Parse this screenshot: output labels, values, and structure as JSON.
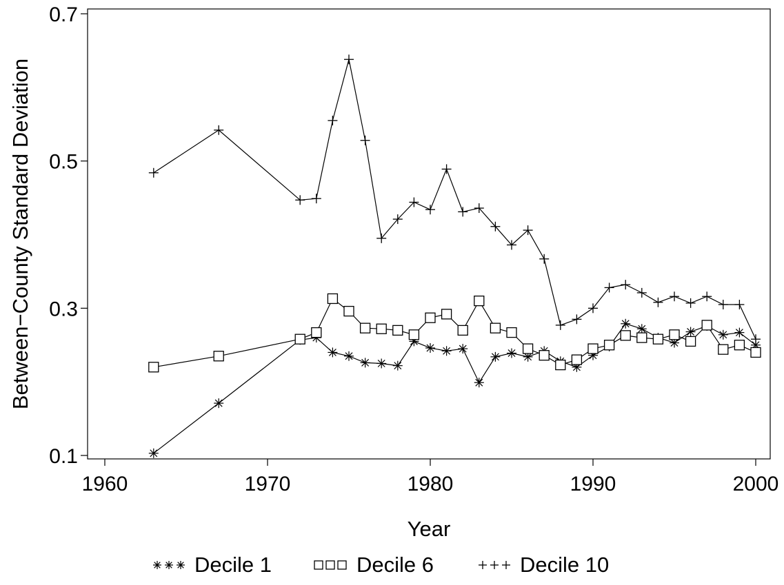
{
  "chart_data": {
    "type": "line",
    "title": "",
    "xlabel": "Year",
    "ylabel": "Between−County Standard Deviation",
    "xlim": [
      1960,
      2000
    ],
    "ylim": [
      0.1,
      0.7
    ],
    "xticks": [
      1960,
      1970,
      1980,
      1990,
      2000
    ],
    "yticks": [
      0.1,
      0.3,
      0.5,
      0.7
    ],
    "ytick_labels": [
      "0.1",
      "0.3",
      "0.5",
      "0.7"
    ],
    "grid": false,
    "legend": "bottom",
    "series": [
      {
        "name": "Decile 1",
        "marker": "star",
        "x": [
          1963,
          1967,
          1972,
          1973,
          1974,
          1975,
          1976,
          1977,
          1978,
          1979,
          1980,
          1981,
          1982,
          1983,
          1984,
          1985,
          1986,
          1987,
          1988,
          1989,
          1990,
          1991,
          1992,
          1993,
          1994,
          1995,
          1996,
          1997,
          1998,
          1999,
          2000
        ],
        "y": [
          0.103,
          0.171,
          0.257,
          0.26,
          0.24,
          0.235,
          0.226,
          0.225,
          0.222,
          0.255,
          0.246,
          0.242,
          0.245,
          0.199,
          0.234,
          0.239,
          0.234,
          0.242,
          0.228,
          0.22,
          0.236,
          0.248,
          0.279,
          0.272,
          0.26,
          0.253,
          0.268,
          0.276,
          0.264,
          0.267,
          0.25
        ]
      },
      {
        "name": "Decile 6",
        "marker": "square",
        "x": [
          1963,
          1967,
          1972,
          1973,
          1974,
          1975,
          1976,
          1977,
          1978,
          1979,
          1980,
          1981,
          1982,
          1983,
          1984,
          1985,
          1986,
          1987,
          1988,
          1989,
          1990,
          1991,
          1992,
          1993,
          1994,
          1995,
          1996,
          1997,
          1998,
          1999,
          2000
        ],
        "y": [
          0.22,
          0.235,
          0.258,
          0.267,
          0.313,
          0.296,
          0.273,
          0.272,
          0.27,
          0.264,
          0.287,
          0.292,
          0.27,
          0.31,
          0.273,
          0.267,
          0.245,
          0.236,
          0.223,
          0.23,
          0.245,
          0.25,
          0.263,
          0.26,
          0.258,
          0.264,
          0.255,
          0.277,
          0.244,
          0.25,
          0.24
        ]
      },
      {
        "name": "Decile 10",
        "marker": "plus",
        "x": [
          1963,
          1967,
          1972,
          1973,
          1974,
          1975,
          1976,
          1977,
          1978,
          1979,
          1980,
          1981,
          1982,
          1983,
          1984,
          1985,
          1986,
          1987,
          1988,
          1989,
          1990,
          1991,
          1992,
          1993,
          1994,
          1995,
          1996,
          1997,
          1998,
          1999,
          2000
        ],
        "y": [
          0.484,
          0.542,
          0.447,
          0.449,
          0.555,
          0.638,
          0.528,
          0.395,
          0.421,
          0.444,
          0.434,
          0.489,
          0.431,
          0.436,
          0.411,
          0.386,
          0.406,
          0.367,
          0.277,
          0.285,
          0.3,
          0.328,
          0.332,
          0.321,
          0.308,
          0.316,
          0.307,
          0.316,
          0.305,
          0.305,
          0.258
        ]
      }
    ]
  }
}
